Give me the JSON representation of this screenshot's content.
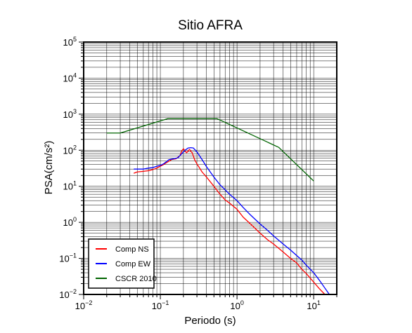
{
  "chart_data": {
    "type": "line",
    "title": "Sitio AFRA",
    "xlabel": "Periodo (s)",
    "ylabel": "PSA(cm/s²)",
    "xscale": "log",
    "yscale": "log",
    "xlim": [
      0.01,
      20
    ],
    "ylim": [
      0.01,
      100000
    ],
    "grid": true,
    "legend_position": "bottom-left",
    "x_ticks": [
      {
        "value": 0.01,
        "base": "10",
        "exp": "−2"
      },
      {
        "value": 0.1,
        "base": "10",
        "exp": "−1"
      },
      {
        "value": 1,
        "base": "10",
        "exp": "0"
      },
      {
        "value": 10,
        "base": "10",
        "exp": "1"
      }
    ],
    "y_ticks": [
      {
        "value": 0.01,
        "base": "10",
        "exp": "−2"
      },
      {
        "value": 0.1,
        "base": "10",
        "exp": "−1"
      },
      {
        "value": 1,
        "base": "10",
        "exp": "0"
      },
      {
        "value": 10,
        "base": "10",
        "exp": "1"
      },
      {
        "value": 100,
        "base": "10",
        "exp": "2"
      },
      {
        "value": 1000,
        "base": "10",
        "exp": "3"
      },
      {
        "value": 10000,
        "base": "10",
        "exp": "4"
      },
      {
        "value": 100000,
        "base": "10",
        "exp": "5"
      }
    ],
    "series": [
      {
        "name": "Comp NS",
        "color": "#ff0000",
        "points": [
          [
            0.045,
            23
          ],
          [
            0.05,
            25
          ],
          [
            0.06,
            26
          ],
          [
            0.07,
            27
          ],
          [
            0.08,
            29
          ],
          [
            0.09,
            32
          ],
          [
            0.1,
            36
          ],
          [
            0.11,
            40
          ],
          [
            0.12,
            45
          ],
          [
            0.13,
            50
          ],
          [
            0.14,
            55
          ],
          [
            0.16,
            58
          ],
          [
            0.18,
            70
          ],
          [
            0.19,
            95
          ],
          [
            0.2,
            110
          ],
          [
            0.22,
            85
          ],
          [
            0.24,
            105
          ],
          [
            0.26,
            85
          ],
          [
            0.28,
            55
          ],
          [
            0.3,
            42
          ],
          [
            0.35,
            25
          ],
          [
            0.4,
            18
          ],
          [
            0.5,
            10
          ],
          [
            0.6,
            6
          ],
          [
            0.7,
            4.2
          ],
          [
            0.8,
            3.4
          ],
          [
            1,
            2.3
          ],
          [
            1.2,
            1.4
          ],
          [
            1.5,
            0.9
          ],
          [
            2,
            0.5
          ],
          [
            2.5,
            0.33
          ],
          [
            3,
            0.25
          ],
          [
            4,
            0.15
          ],
          [
            5,
            0.1
          ],
          [
            6,
            0.075
          ],
          [
            7,
            0.05
          ],
          [
            8,
            0.038
          ],
          [
            10,
            0.022
          ],
          [
            12,
            0.014
          ],
          [
            14,
            0.01
          ]
        ]
      },
      {
        "name": "Comp EW",
        "color": "#0000ff",
        "points": [
          [
            0.045,
            30
          ],
          [
            0.05,
            30
          ],
          [
            0.06,
            30
          ],
          [
            0.07,
            32
          ],
          [
            0.08,
            33
          ],
          [
            0.09,
            36
          ],
          [
            0.1,
            38
          ],
          [
            0.11,
            42
          ],
          [
            0.12,
            48
          ],
          [
            0.13,
            55
          ],
          [
            0.15,
            58
          ],
          [
            0.17,
            62
          ],
          [
            0.19,
            80
          ],
          [
            0.21,
            100
          ],
          [
            0.23,
            115
          ],
          [
            0.25,
            118
          ],
          [
            0.27,
            115
          ],
          [
            0.3,
            90
          ],
          [
            0.35,
            55
          ],
          [
            0.4,
            35
          ],
          [
            0.5,
            18
          ],
          [
            0.6,
            11
          ],
          [
            0.7,
            8
          ],
          [
            0.8,
            6
          ],
          [
            1,
            4
          ],
          [
            1.2,
            2.6
          ],
          [
            1.5,
            1.6
          ],
          [
            2,
            0.9
          ],
          [
            2.5,
            0.6
          ],
          [
            3,
            0.42
          ],
          [
            4,
            0.25
          ],
          [
            5,
            0.17
          ],
          [
            6,
            0.12
          ],
          [
            7,
            0.09
          ],
          [
            8,
            0.065
          ],
          [
            10,
            0.04
          ],
          [
            12,
            0.024
          ],
          [
            14,
            0.015
          ],
          [
            16,
            0.01
          ]
        ]
      },
      {
        "name": "CSCR 2010",
        "color": "#006400",
        "points": [
          [
            0.02,
            300
          ],
          [
            0.03,
            300
          ],
          [
            0.125,
            750
          ],
          [
            0.55,
            750
          ],
          [
            3.5,
            120
          ],
          [
            10,
            14
          ]
        ]
      }
    ]
  }
}
